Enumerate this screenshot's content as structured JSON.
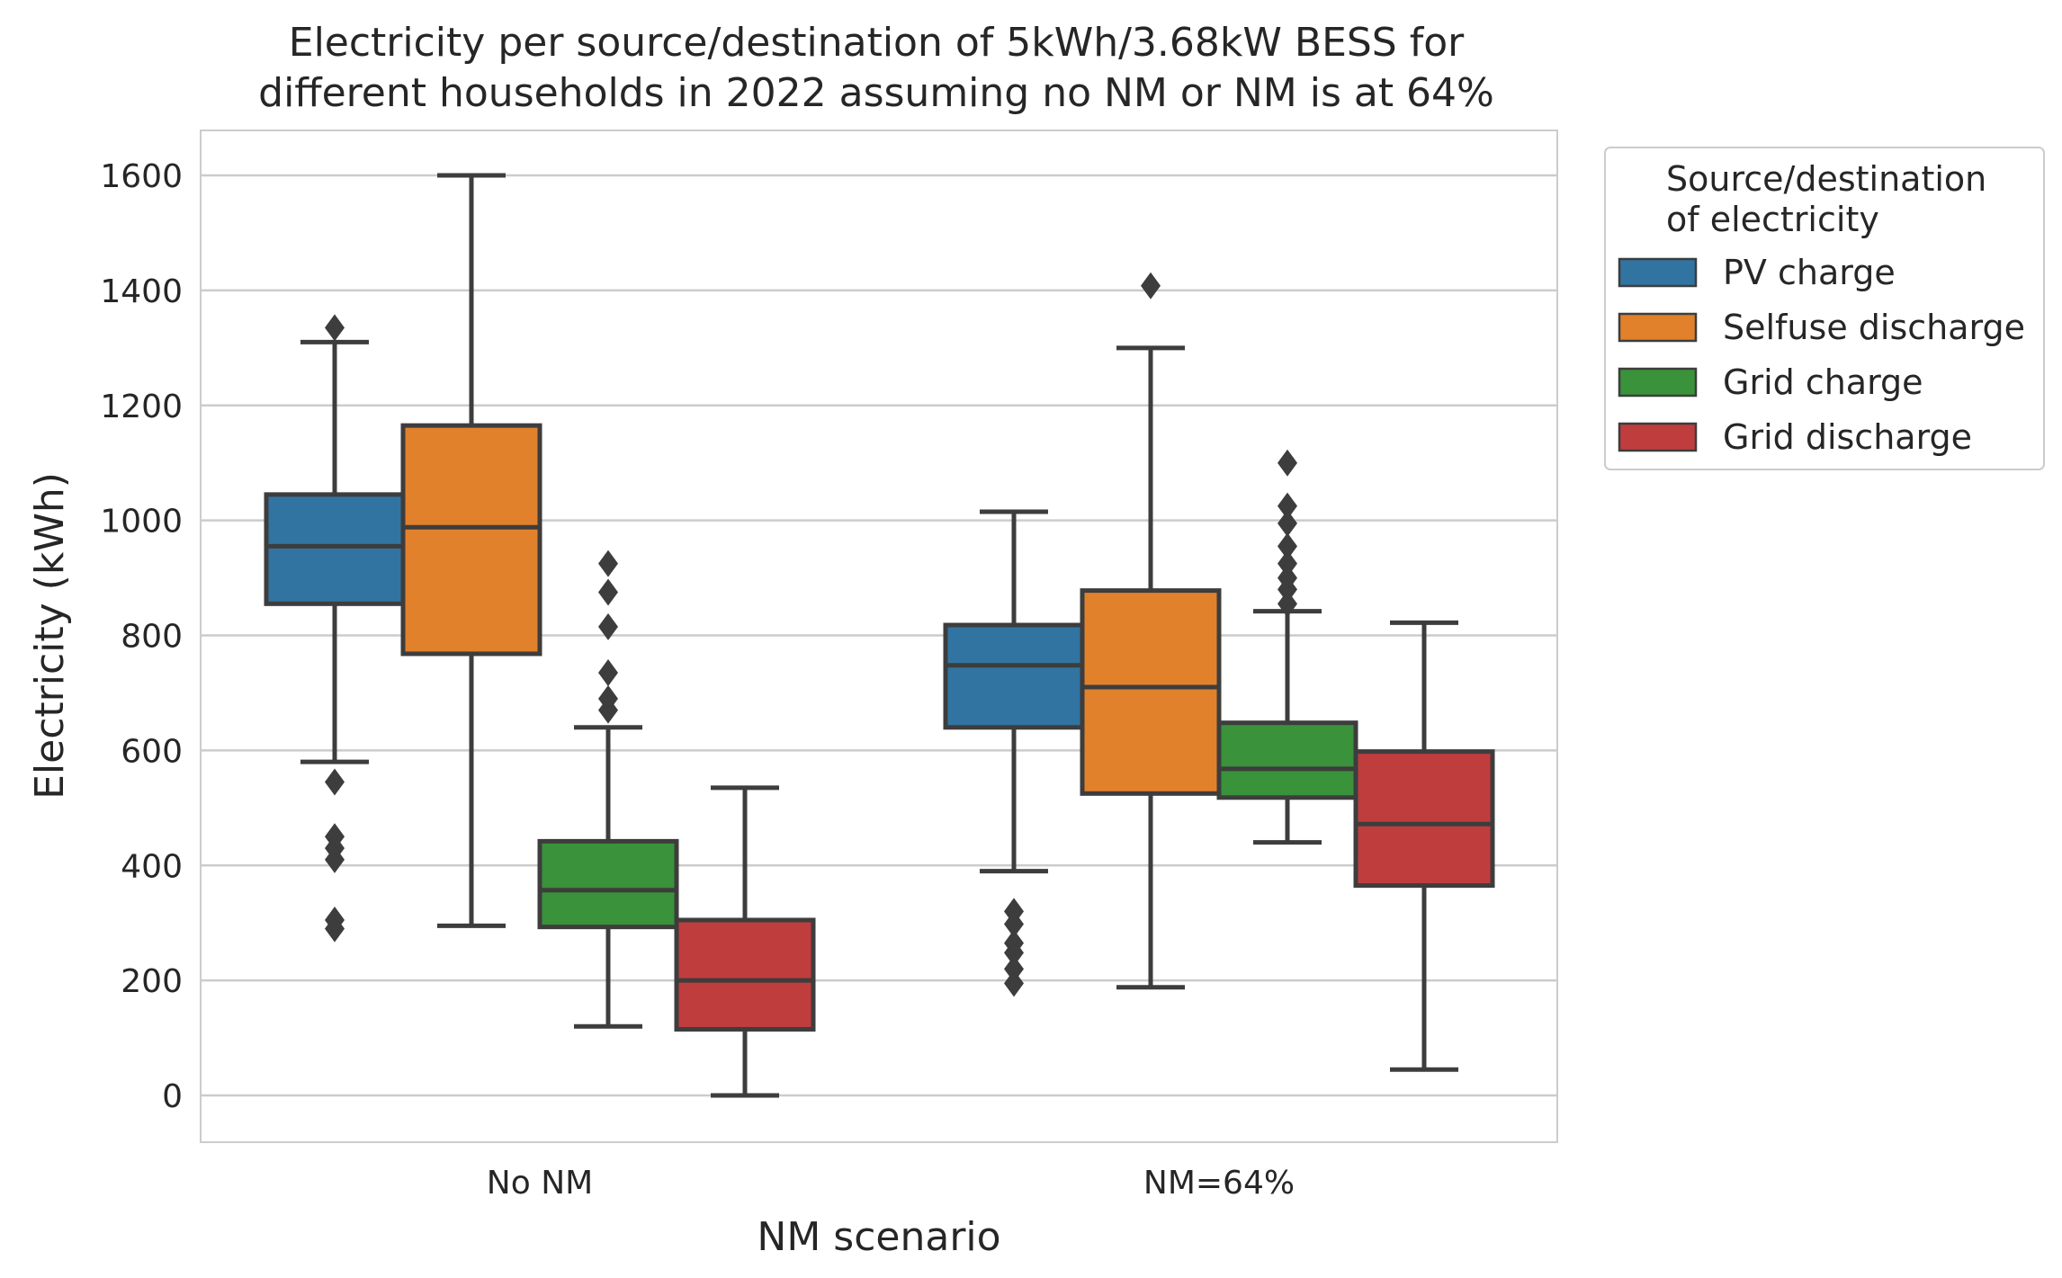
{
  "chart_data": {
    "type": "box",
    "title": [
      "Electricity per source/destination of 5kWh/3.68kW BESS for",
      "different households in 2022 assuming no NM or NM is at 64%"
    ],
    "xlabel": "NM scenario",
    "ylabel": "Electricity (kWh)",
    "ylim": [
      -80,
      1680
    ],
    "yticks": [
      0,
      200,
      400,
      600,
      800,
      1000,
      1200,
      1400,
      1600
    ],
    "ytick_labels": [
      "0",
      "200",
      "400",
      "600",
      "800",
      "1000",
      "1200",
      "1400",
      "1600"
    ],
    "categories": [
      "No NM",
      "NM=64%"
    ],
    "grid": "horizontal",
    "legend": {
      "title": [
        "Source/destination",
        "of electricity"
      ],
      "position": "outside-right"
    },
    "series": [
      {
        "name": "PV charge",
        "color": "#3274a1",
        "boxes": [
          {
            "whisker_low": 580,
            "q1": 855,
            "median": 955,
            "q3": 1045,
            "whisker_high": 1310,
            "outliers": [
              1335,
              545,
              450,
              430,
              410,
              305,
              290
            ]
          },
          {
            "whisker_low": 390,
            "q1": 640,
            "median": 748,
            "q3": 818,
            "whisker_high": 1015,
            "outliers": [
              320,
              298,
              265,
              248,
              220,
              195
            ]
          }
        ]
      },
      {
        "name": "Selfuse discharge",
        "color": "#e1812c",
        "boxes": [
          {
            "whisker_low": 295,
            "q1": 768,
            "median": 988,
            "q3": 1165,
            "whisker_high": 1600,
            "outliers": []
          },
          {
            "whisker_low": 188,
            "q1": 525,
            "median": 710,
            "q3": 878,
            "whisker_high": 1300,
            "outliers": [
              1408
            ]
          }
        ]
      },
      {
        "name": "Grid charge",
        "color": "#3a923a",
        "boxes": [
          {
            "whisker_low": 120,
            "q1": 293,
            "median": 357,
            "q3": 442,
            "whisker_high": 640,
            "outliers": [
              925,
              875,
              815,
              735,
              690,
              670
            ]
          },
          {
            "whisker_low": 440,
            "q1": 518,
            "median": 568,
            "q3": 648,
            "whisker_high": 842,
            "outliers": [
              1100,
              1025,
              995,
              955,
              925,
              900,
              880,
              855
            ]
          }
        ]
      },
      {
        "name": "Grid discharge",
        "color": "#c03d3e",
        "boxes": [
          {
            "whisker_low": 0,
            "q1": 115,
            "median": 200,
            "q3": 305,
            "whisker_high": 535,
            "outliers": []
          },
          {
            "whisker_low": 45,
            "q1": 365,
            "median": 472,
            "q3": 598,
            "whisker_high": 822,
            "outliers": []
          }
        ]
      }
    ]
  }
}
